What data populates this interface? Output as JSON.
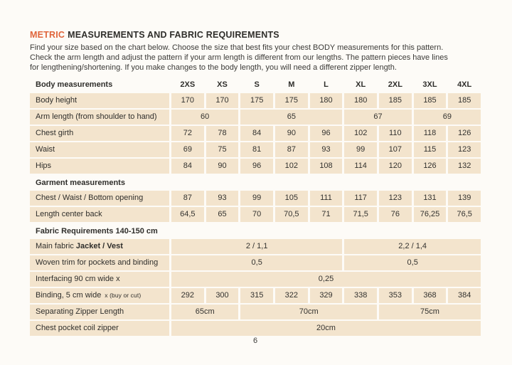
{
  "page": {
    "title": {
      "accent": "METRIC",
      "rest": "MEASUREMENTS AND FABRIC REQUIREMENTS"
    },
    "intro_lines": [
      "Find your size based on the chart below. Choose the size that best fits your chest BODY measurements for this pattern.",
      "Check the arm length and adjust the pattern if your arm length is different from our lengths. The pattern pieces have lines",
      "for lengthening/shortening. If you make changes to the body length, you will need a different zipper length."
    ],
    "page_number": "6"
  },
  "colors": {
    "accent": "#e0653c",
    "cell_bg": "#f3e4cd",
    "ink": "#2f2e2b",
    "page_bg": "#fdfbf7"
  },
  "table": {
    "header_label": "Body measurements",
    "sizes": [
      "2XS",
      "XS",
      "S",
      "M",
      "L",
      "XL",
      "2XL",
      "3XL",
      "4XL"
    ],
    "rows": [
      {
        "type": "data",
        "label": "Body height",
        "cells": [
          {
            "text": "170",
            "span": 1
          },
          {
            "text": "170",
            "span": 1
          },
          {
            "text": "175",
            "span": 1
          },
          {
            "text": "175",
            "span": 1
          },
          {
            "text": "180",
            "span": 1
          },
          {
            "text": "180",
            "span": 1
          },
          {
            "text": "185",
            "span": 1
          },
          {
            "text": "185",
            "span": 1
          },
          {
            "text": "185",
            "span": 1
          }
        ]
      },
      {
        "type": "data",
        "label": "Arm length (from shoulder to hand)",
        "cells": [
          {
            "text": "60",
            "span": 2
          },
          {
            "text": "65",
            "span": 3
          },
          {
            "text": "67",
            "span": 2
          },
          {
            "text": "69",
            "span": 2
          }
        ]
      },
      {
        "type": "data",
        "label": "Chest girth",
        "cells": [
          {
            "text": "72",
            "span": 1
          },
          {
            "text": "78",
            "span": 1
          },
          {
            "text": "84",
            "span": 1
          },
          {
            "text": "90",
            "span": 1
          },
          {
            "text": "96",
            "span": 1
          },
          {
            "text": "102",
            "span": 1
          },
          {
            "text": "110",
            "span": 1
          },
          {
            "text": "118",
            "span": 1
          },
          {
            "text": "126",
            "span": 1
          }
        ]
      },
      {
        "type": "data",
        "label": "Waist",
        "cells": [
          {
            "text": "69",
            "span": 1
          },
          {
            "text": "75",
            "span": 1
          },
          {
            "text": "81",
            "span": 1
          },
          {
            "text": "87",
            "span": 1
          },
          {
            "text": "93",
            "span": 1
          },
          {
            "text": "99",
            "span": 1
          },
          {
            "text": "107",
            "span": 1
          },
          {
            "text": "115",
            "span": 1
          },
          {
            "text": "123",
            "span": 1
          }
        ]
      },
      {
        "type": "data",
        "label": "Hips",
        "cells": [
          {
            "text": "84",
            "span": 1
          },
          {
            "text": "90",
            "span": 1
          },
          {
            "text": "96",
            "span": 1
          },
          {
            "text": "102",
            "span": 1
          },
          {
            "text": "108",
            "span": 1
          },
          {
            "text": "114",
            "span": 1
          },
          {
            "text": "120",
            "span": 1
          },
          {
            "text": "126",
            "span": 1
          },
          {
            "text": "132",
            "span": 1
          }
        ]
      },
      {
        "type": "section",
        "label": "Garment measurements"
      },
      {
        "type": "data",
        "label": "Chest / Waist / Bottom opening",
        "cells": [
          {
            "text": "87",
            "span": 1
          },
          {
            "text": "93",
            "span": 1
          },
          {
            "text": "99",
            "span": 1
          },
          {
            "text": "105",
            "span": 1
          },
          {
            "text": "111",
            "span": 1
          },
          {
            "text": "117",
            "span": 1
          },
          {
            "text": "123",
            "span": 1
          },
          {
            "text": "131",
            "span": 1
          },
          {
            "text": "139",
            "span": 1
          }
        ]
      },
      {
        "type": "data",
        "label": "Length center back",
        "cells": [
          {
            "text": "64,5",
            "span": 1
          },
          {
            "text": "65",
            "span": 1
          },
          {
            "text": "70",
            "span": 1
          },
          {
            "text": "70,5",
            "span": 1
          },
          {
            "text": "71",
            "span": 1
          },
          {
            "text": "71,5",
            "span": 1
          },
          {
            "text": "76",
            "span": 1
          },
          {
            "text": "76,25",
            "span": 1
          },
          {
            "text": "76,5",
            "span": 1
          }
        ]
      },
      {
        "type": "section",
        "label": "Fabric Requirements 140-150 cm"
      },
      {
        "type": "data",
        "label": "Main fabric",
        "label_bold": "Jacket / Vest",
        "cells": [
          {
            "text": "2 / 1,1",
            "span": 5
          },
          {
            "text": "2,2 / 1,4",
            "span": 4
          }
        ]
      },
      {
        "type": "data",
        "label": "Woven trim for pockets and binding",
        "cells": [
          {
            "text": "0,5",
            "span": 5
          },
          {
            "text": "0,5",
            "span": 4
          }
        ]
      },
      {
        "type": "data",
        "label": "Interfacing  90 cm wide x",
        "cells": [
          {
            "text": "0,25",
            "span": 9
          }
        ]
      },
      {
        "type": "data",
        "label": "Binding, 5 cm wide",
        "label_small": "x (buy or cut)",
        "cells": [
          {
            "text": "292",
            "span": 1
          },
          {
            "text": "300",
            "span": 1
          },
          {
            "text": "315",
            "span": 1
          },
          {
            "text": "322",
            "span": 1
          },
          {
            "text": "329",
            "span": 1
          },
          {
            "text": "338",
            "span": 1
          },
          {
            "text": "353",
            "span": 1
          },
          {
            "text": "368",
            "span": 1
          },
          {
            "text": "384",
            "span": 1
          }
        ]
      },
      {
        "type": "data",
        "label": "Separating Zipper Length",
        "cells": [
          {
            "text": "65cm",
            "span": 2
          },
          {
            "text": "70cm",
            "span": 4
          },
          {
            "text": "75cm",
            "span": 3
          }
        ]
      },
      {
        "type": "data",
        "label": "Chest pocket coil zipper",
        "cells": [
          {
            "text": "20cm",
            "span": 9
          }
        ]
      }
    ]
  }
}
